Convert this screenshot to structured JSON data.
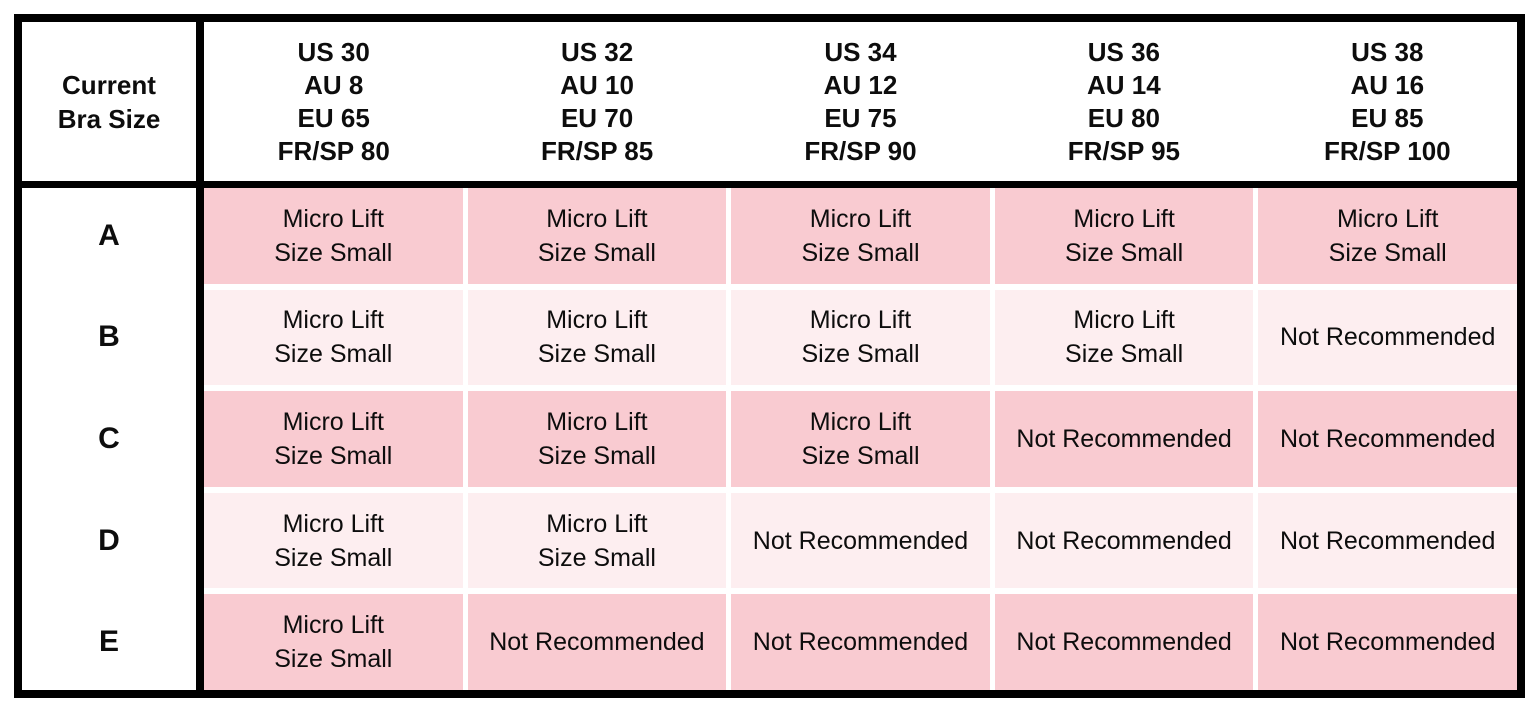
{
  "table": {
    "corner_header": "Current\nBra Size",
    "column_headers": [
      "US 30\nAU 8\nEU 65\nFR/SP 80",
      "US 32\nAU 10\nEU 70\nFR/SP 85",
      "US 34\nAU 12\nEU 75\nFR/SP 90",
      "US 36\nAU 14\nEU 80\nFR/SP 95",
      "US 38\nAU 16\nEU 85\nFR/SP 100"
    ],
    "row_labels": [
      "A",
      "B",
      "C",
      "D",
      "E"
    ],
    "cells": [
      [
        "Micro Lift\nSize Small",
        "Micro Lift\nSize Small",
        "Micro Lift\nSize Small",
        "Micro Lift\nSize Small",
        "Micro Lift\nSize Small"
      ],
      [
        "Micro Lift\nSize Small",
        "Micro Lift\nSize Small",
        "Micro Lift\nSize Small",
        "Micro Lift\nSize Small",
        "Not Recommended"
      ],
      [
        "Micro Lift\nSize Small",
        "Micro Lift\nSize Small",
        "Micro Lift\nSize Small",
        "Not Recommended",
        "Not Recommended"
      ],
      [
        "Micro Lift\nSize Small",
        "Micro Lift\nSize Small",
        "Not Recommended",
        "Not Recommended",
        "Not Recommended"
      ],
      [
        "Micro Lift\nSize Small",
        "Not Recommended",
        "Not Recommended",
        "Not Recommended",
        "Not Recommended"
      ]
    ],
    "colors": {
      "row_dark": "#f9cbd1",
      "row_light": "#fdeef0",
      "border": "#000000",
      "text": "#0d0d0d"
    }
  }
}
